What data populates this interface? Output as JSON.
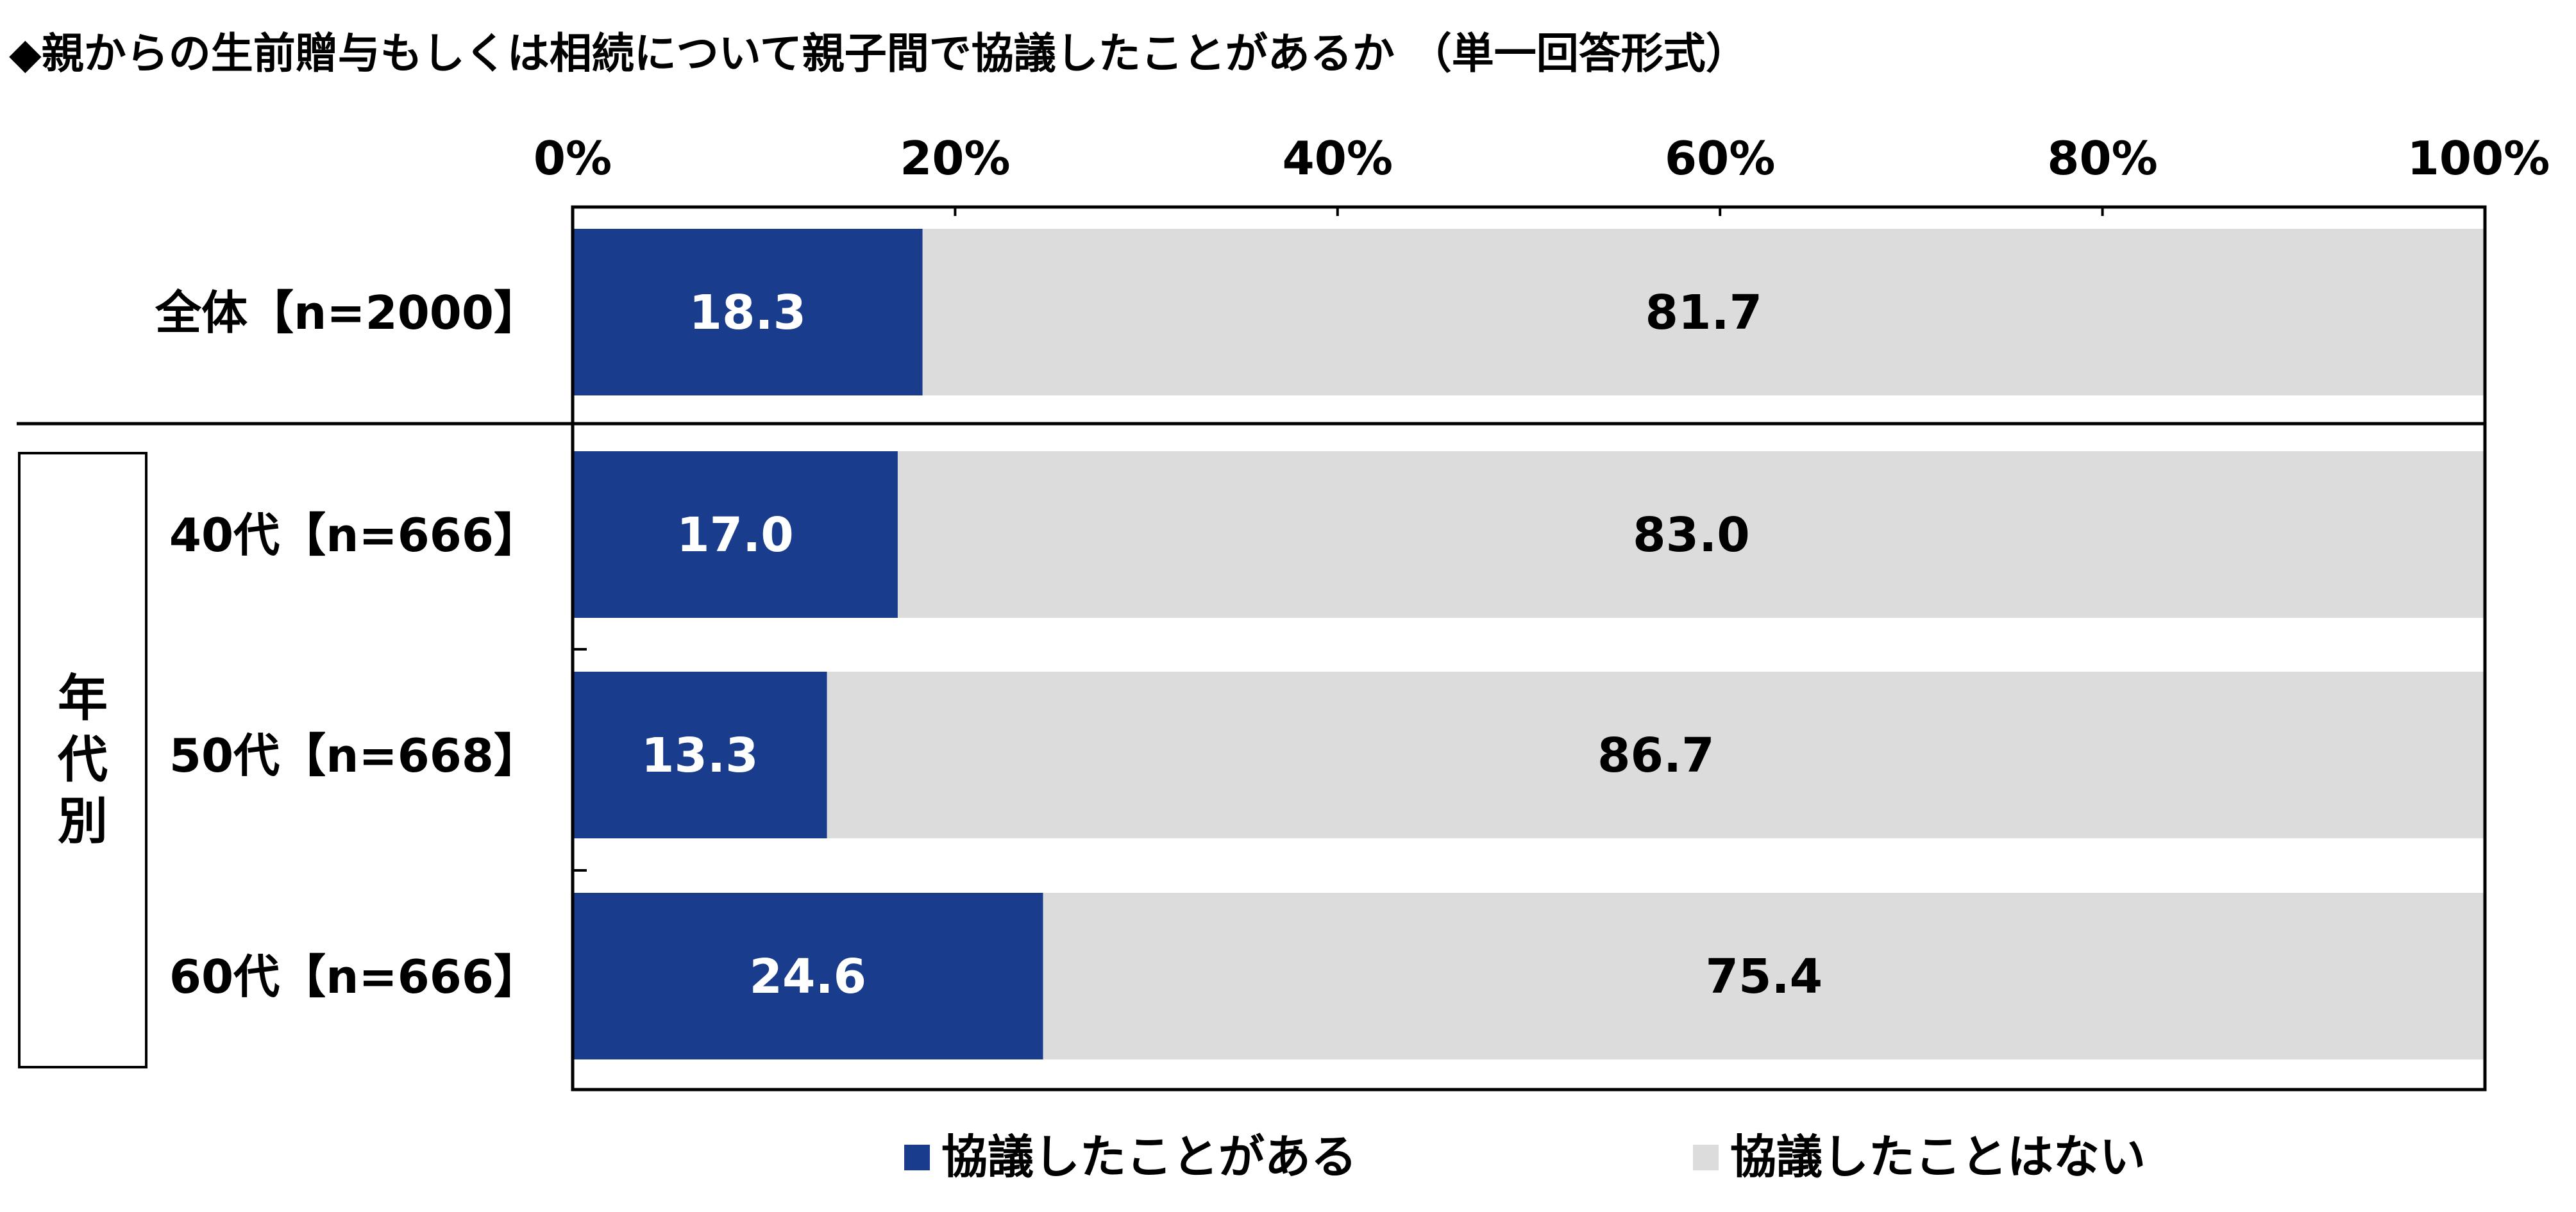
{
  "chart_data": {
    "type": "bar",
    "orientation": "horizontal",
    "stacked": true,
    "title": "◆親からの生前贈与もしくは相続について親子間で協議したことがあるか （単一回答形式）",
    "xlabel": "",
    "ylabel": "",
    "xlim": [
      0,
      100
    ],
    "x_ticks": [
      "0%",
      "20%",
      "40%",
      "60%",
      "80%",
      "100%"
    ],
    "grid": false,
    "legend_position": "bottom",
    "group_label": "年代別",
    "categories": [
      "全体【n=2000】",
      "40代【n=666】",
      "50代【n=668】",
      "60代【n=666】"
    ],
    "series": [
      {
        "name": "協議したことがある",
        "values": [
          18.3,
          17.0,
          13.3,
          24.6
        ],
        "labels": [
          "18.3",
          "17.0",
          "13.3",
          "24.6"
        ],
        "color": "#193c8c",
        "label_color": "#ffffff"
      },
      {
        "name": "協議したことはない",
        "values": [
          81.7,
          83.0,
          86.7,
          75.4
        ],
        "labels": [
          "81.7",
          "83.0",
          "86.7",
          "75.4"
        ],
        "color": "#dcdcdc",
        "label_color": "#000000"
      }
    ]
  }
}
